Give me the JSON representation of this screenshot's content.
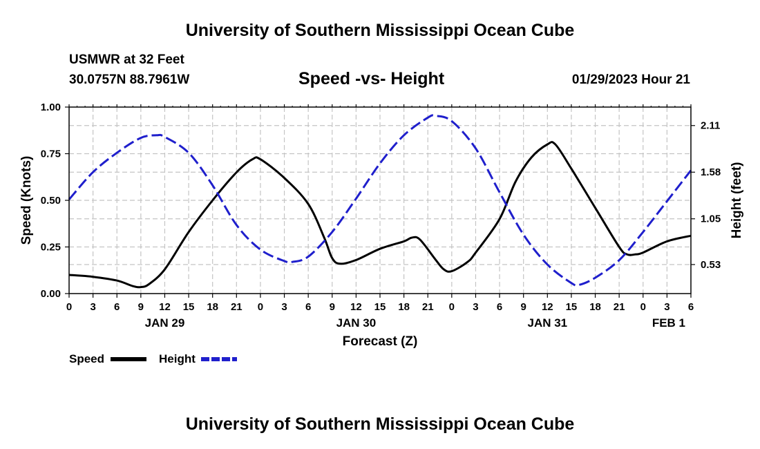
{
  "header": {
    "main_title": "University of Southern Mississippi Ocean Cube",
    "station": "USMWR at 32 Feet",
    "coords": "30.0757N  88.7961W",
    "datetime": "01/29/2023 Hour 21",
    "bottom_title": "University of Southern Mississippi Ocean Cube"
  },
  "chart_data": {
    "type": "line",
    "title": "Speed -vs- Height",
    "xlabel": "Forecast (Z)",
    "ylabel": "Speed (Knots)",
    "y2label": "Height (feet)",
    "xlim": [
      0,
      78
    ],
    "ylim": [
      0,
      1.0
    ],
    "y2lim": [
      0.2,
      2.32
    ],
    "x_ticks": [
      0,
      3,
      6,
      9,
      12,
      15,
      18,
      21,
      24,
      27,
      30,
      33,
      36,
      39,
      42,
      45,
      48,
      51,
      54,
      57,
      60,
      63,
      66,
      69,
      72,
      75,
      78
    ],
    "x_tick_labels": [
      "0",
      "3",
      "6",
      "9",
      "12",
      "15",
      "18",
      "21",
      "0",
      "3",
      "6",
      "9",
      "12",
      "15",
      "18",
      "21",
      "0",
      "3",
      "6",
      "9",
      "12",
      "15",
      "18",
      "21",
      "0",
      "3",
      "6"
    ],
    "date_labels": [
      {
        "x": 12,
        "label": "JAN 29"
      },
      {
        "x": 36,
        "label": "JAN 30"
      },
      {
        "x": 60,
        "label": "JAN 31"
      },
      {
        "x": 78,
        "label": "FEB 1"
      }
    ],
    "y_ticks": [
      0.0,
      0.25,
      0.5,
      0.75,
      1.0
    ],
    "y_tick_labels": [
      "0.00",
      "0.25",
      "0.50",
      "0.75",
      "1.00"
    ],
    "y2_ticks": [
      0.53,
      1.05,
      1.58,
      2.11
    ],
    "y2_tick_labels": [
      "0.53",
      "1.05",
      "1.58",
      "2.11"
    ],
    "grid": true,
    "legend_position": "bottom-left",
    "series": [
      {
        "name": "Speed",
        "axis": "left",
        "color": "#000000",
        "style": "solid",
        "x": [
          0,
          3,
          6,
          8,
          9,
          10,
          12,
          15,
          18,
          21,
          23,
          24,
          27,
          30,
          32,
          33,
          34,
          36,
          39,
          42,
          43,
          44,
          46,
          47,
          48,
          50,
          51,
          54,
          56,
          58,
          60,
          61,
          63,
          66,
          69,
          70,
          71,
          72,
          75,
          78
        ],
        "values": [
          0.1,
          0.09,
          0.07,
          0.04,
          0.035,
          0.05,
          0.13,
          0.33,
          0.5,
          0.65,
          0.72,
          0.72,
          0.62,
          0.48,
          0.3,
          0.19,
          0.16,
          0.18,
          0.24,
          0.28,
          0.3,
          0.29,
          0.18,
          0.13,
          0.12,
          0.17,
          0.22,
          0.4,
          0.6,
          0.73,
          0.8,
          0.8,
          0.67,
          0.46,
          0.25,
          0.21,
          0.21,
          0.22,
          0.28,
          0.31
        ]
      },
      {
        "name": "Height",
        "axis": "right",
        "color": "#1f1fcc",
        "style": "dashed",
        "x": [
          0,
          3,
          6,
          9,
          11,
          12,
          15,
          18,
          21,
          24,
          27,
          28,
          30,
          33,
          36,
          39,
          42,
          45,
          46,
          48,
          51,
          54,
          57,
          60,
          63,
          64,
          66,
          69,
          72,
          75,
          78
        ],
        "values": [
          1.27,
          1.58,
          1.8,
          1.97,
          2.0,
          1.98,
          1.8,
          1.43,
          0.98,
          0.7,
          0.57,
          0.56,
          0.62,
          0.9,
          1.28,
          1.68,
          2.0,
          2.2,
          2.22,
          2.16,
          1.85,
          1.35,
          0.87,
          0.53,
          0.32,
          0.3,
          0.38,
          0.58,
          0.9,
          1.25,
          1.6
        ]
      }
    ]
  }
}
